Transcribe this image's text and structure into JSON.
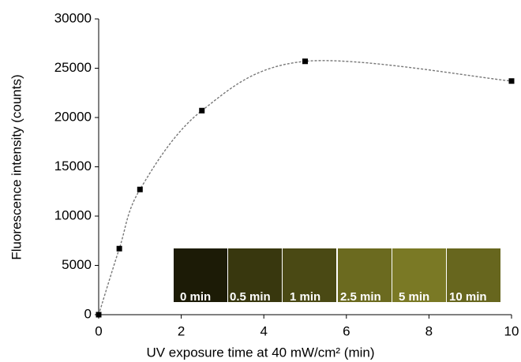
{
  "chart_data": {
    "type": "scatter",
    "x_label": "UV exposure time at 40 mW/cm² (min)",
    "y_label": "Fluorescence intensity (counts)",
    "series": [
      {
        "color": "#000000",
        "x": [
          0,
          0.5,
          1,
          2.5,
          5,
          10
        ],
        "y": [
          0,
          6700,
          12700,
          20700,
          25700,
          23700
        ]
      }
    ],
    "xlim": [
      0,
      10
    ],
    "xticks": [
      0,
      2,
      4,
      6,
      8,
      10
    ],
    "ylim": [
      0,
      30000
    ],
    "yticks": [
      0,
      5000,
      10000,
      15000,
      20000,
      25000,
      30000
    ],
    "inset_labels": [
      "0 min",
      "0.5 min",
      "1 min",
      "2.5 min",
      "5 min",
      "10 min"
    ]
  }
}
